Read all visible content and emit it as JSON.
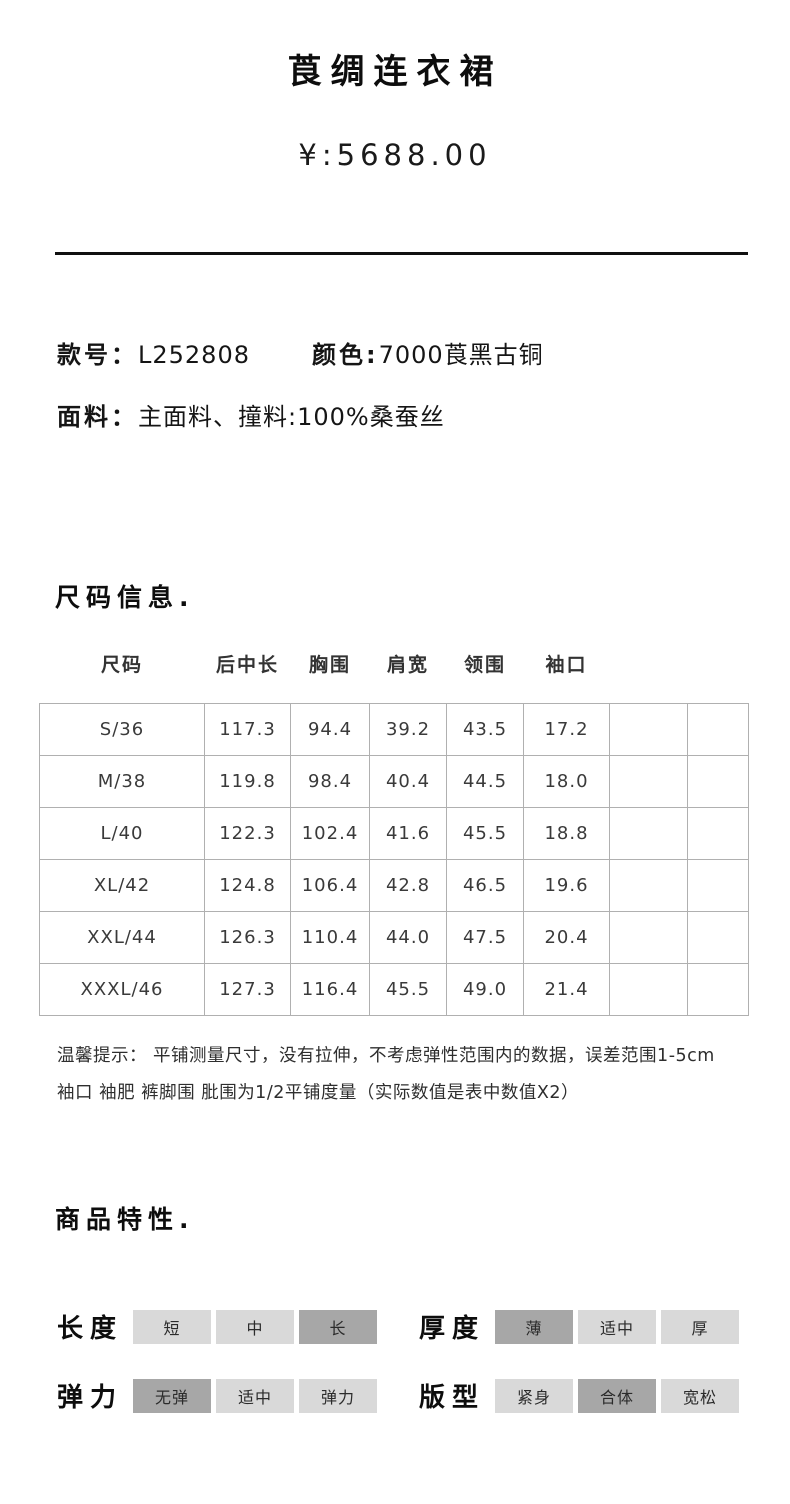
{
  "header": {
    "title": "莨绸连衣裙",
    "price": "¥:5688.00"
  },
  "product_info": {
    "style_label": "款号：",
    "style_value": "L252808",
    "color_label": "颜色:",
    "color_value": "7000莨黑古铜",
    "fabric_label": "面料：",
    "fabric_value": "主面料、撞料:100%桑蚕丝"
  },
  "size_section": {
    "heading": "尺码信息.",
    "table": {
      "headers": [
        "尺码",
        "后中长",
        "胸围",
        "肩宽",
        "领围",
        "袖口",
        "",
        ""
      ],
      "rows": [
        [
          "S/36",
          "117.3",
          "94.4",
          "39.2",
          "43.5",
          "17.2",
          "",
          ""
        ],
        [
          "M/38",
          "119.8",
          "98.4",
          "40.4",
          "44.5",
          "18.0",
          "",
          ""
        ],
        [
          "L/40",
          "122.3",
          "102.4",
          "41.6",
          "45.5",
          "18.8",
          "",
          ""
        ],
        [
          "XL/42",
          "124.8",
          "106.4",
          "42.8",
          "46.5",
          "19.6",
          "",
          ""
        ],
        [
          "XXL/44",
          "126.3",
          "110.4",
          "44.0",
          "47.5",
          "20.4",
          "",
          ""
        ],
        [
          "XXXL/46",
          "127.3",
          "116.4",
          "45.5",
          "49.0",
          "21.4",
          "",
          ""
        ]
      ]
    },
    "note_lines": [
      "温馨提示： 平铺测量尺寸，没有拉伸，不考虑弹性范围内的数据，误差范围1-5cm",
      "袖口 袖肥 裤脚围 肶围为1/2平铺度量（实际数值是表中数值X2）"
    ]
  },
  "features_section": {
    "heading": "商品特性.",
    "groups": [
      {
        "label": "长度",
        "options": [
          "短",
          "中",
          "长"
        ],
        "selected_index": 2
      },
      {
        "label": "厚度",
        "options": [
          "薄",
          "适中",
          "厚"
        ],
        "selected_index": 0
      },
      {
        "label": "弹力",
        "options": [
          "无弹",
          "适中",
          "弹力"
        ],
        "selected_index": 0
      },
      {
        "label": "版型",
        "options": [
          "紧身",
          "合体",
          "宽松"
        ],
        "selected_index": 1
      }
    ]
  },
  "colors": {
    "option_bg": "#d9d9d9",
    "option_selected_bg": "#a7a7a7",
    "table_border": "#b0b0b0",
    "divider": "#101010",
    "text_primary": "#111111"
  }
}
